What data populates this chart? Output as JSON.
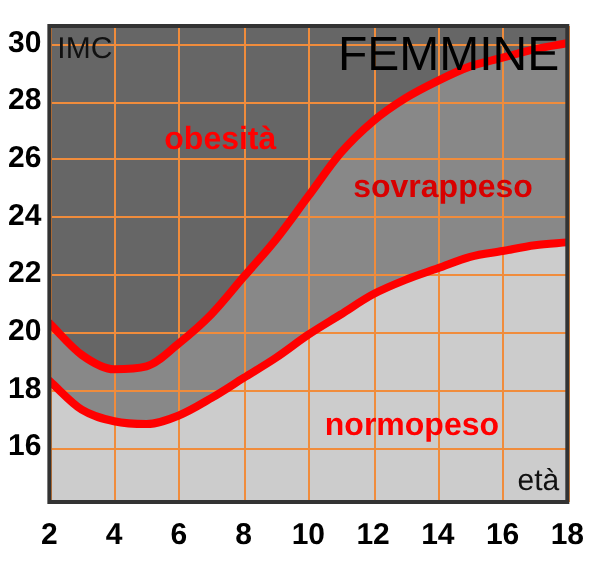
{
  "chart_data": {
    "type": "area",
    "title": "FEMMINE",
    "xlabel": "età",
    "ylabel": "IMC",
    "annotations": [
      "obesità",
      "sovrappeso",
      "normopeso"
    ],
    "x": [
      2,
      3,
      4,
      5,
      6,
      7,
      8,
      9,
      10,
      11,
      12,
      13,
      14,
      15,
      16,
      17,
      18
    ],
    "series": [
      {
        "color": "#ff0000",
        "values": [
          20.3,
          19.2,
          18.7,
          18.8,
          19.6,
          20.6,
          21.9,
          23.2,
          24.7,
          26.2,
          27.3,
          28.1,
          28.7,
          29.2,
          29.5,
          29.8,
          30.0
        ]
      },
      {
        "color": "#ff0000",
        "values": [
          18.3,
          17.3,
          16.9,
          16.8,
          17.1,
          17.7,
          18.4,
          19.1,
          19.9,
          20.6,
          21.3,
          21.8,
          22.2,
          22.6,
          22.8,
          23.0,
          23.1
        ]
      }
    ],
    "xlim": [
      2,
      18
    ],
    "xticks": [
      2,
      4,
      6,
      8,
      10,
      12,
      14,
      16,
      18
    ],
    "ylim": [
      14.1,
      30.6
    ],
    "yticks": [
      16,
      18,
      20,
      22,
      24,
      26,
      28,
      30
    ],
    "grid": true,
    "legend": false,
    "marker": "none",
    "line_style": "solid"
  }
}
